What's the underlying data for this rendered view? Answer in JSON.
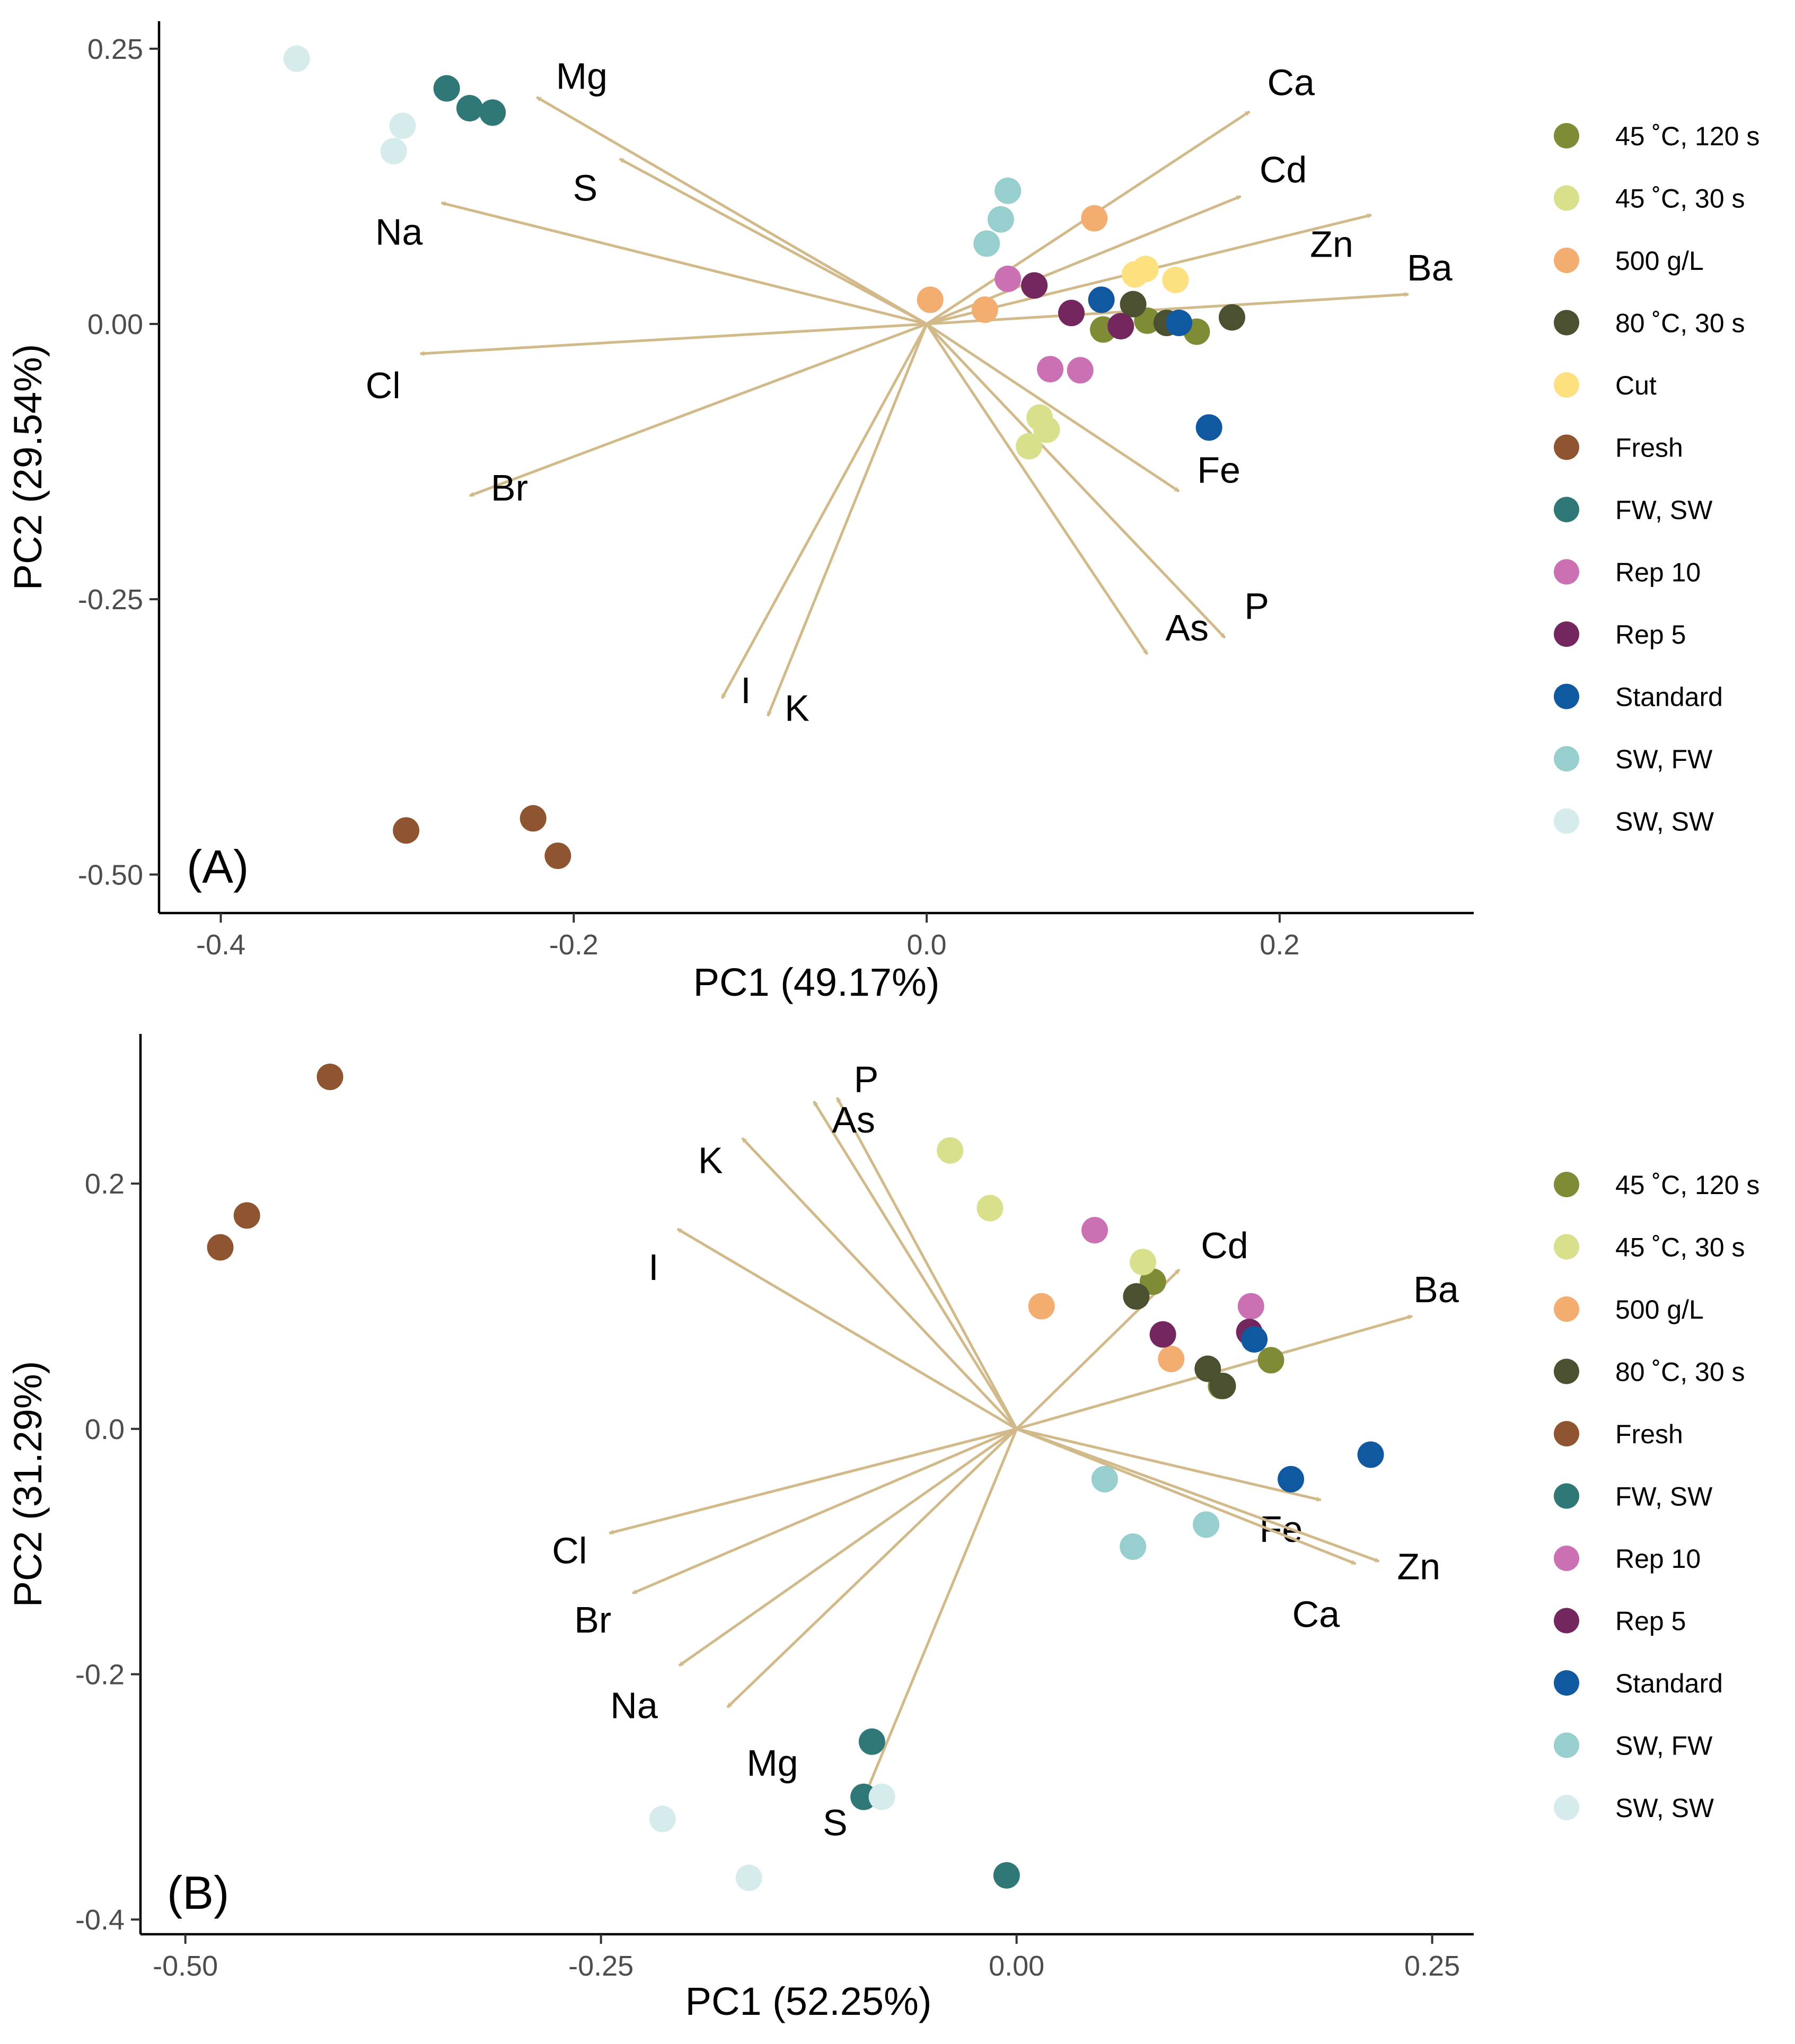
{
  "figure": "PCA biplots",
  "chart_data": [
    {
      "type": "scatter",
      "panel_label": "(A)",
      "xlabel": "PC1 (49.17%)",
      "ylabel": "PC2 (29.54%)",
      "xlim": [
        -0.435,
        0.31
      ],
      "ylim": [
        -0.535,
        0.275
      ],
      "xticks": [
        -0.4,
        -0.2,
        0.0,
        0.2
      ],
      "xtick_labels": [
        "-0.4",
        "-0.2",
        "0.0",
        "0.2"
      ],
      "yticks": [
        0.25,
        0.0,
        -0.25,
        -0.5
      ],
      "ytick_labels": [
        "0.25",
        "0.00",
        "-0.25",
        "-0.50"
      ],
      "legend_position": "right",
      "series": [
        {
          "name": "45 ˚C, 120 s",
          "color": "#7f8c35",
          "points": [
            [
              0.1,
              -0.005
            ],
            [
              0.125,
              0.003
            ],
            [
              0.153,
              -0.007
            ]
          ]
        },
        {
          "name": "45 ˚C, 30 s",
          "color": "#d8e08c",
          "points": [
            [
              0.064,
              -0.085
            ],
            [
              0.068,
              -0.096
            ],
            [
              0.058,
              -0.111
            ]
          ]
        },
        {
          "name": "500 g/L",
          "color": "#f4ad70",
          "points": [
            [
              0.095,
              0.096
            ],
            [
              0.002,
              0.022
            ],
            [
              0.033,
              0.013
            ]
          ]
        },
        {
          "name": "80 ˚C, 30 s",
          "color": "#4b5130",
          "points": [
            [
              0.117,
              0.018
            ],
            [
              0.136,
              0.001
            ],
            [
              0.173,
              0.006
            ]
          ]
        },
        {
          "name": "Cut",
          "color": "#fde07f",
          "points": [
            [
              0.118,
              0.045
            ],
            [
              0.124,
              0.05
            ],
            [
              0.141,
              0.04
            ]
          ]
        },
        {
          "name": "Fresh",
          "color": "#8f5430",
          "points": [
            [
              -0.295,
              -0.46
            ],
            [
              -0.223,
              -0.449
            ],
            [
              -0.209,
              -0.483
            ]
          ]
        },
        {
          "name": "FW, SW",
          "color": "#307777",
          "points": [
            [
              -0.272,
              0.214
            ],
            [
              -0.259,
              0.196
            ],
            [
              -0.246,
              0.192
            ]
          ]
        },
        {
          "name": "Rep 10",
          "color": "#cc70b4",
          "points": [
            [
              0.046,
              0.041
            ],
            [
              0.07,
              -0.041
            ],
            [
              0.087,
              -0.042
            ]
          ]
        },
        {
          "name": "Rep 5",
          "color": "#74275e",
          "points": [
            [
              0.061,
              0.035
            ],
            [
              0.082,
              0.01
            ],
            [
              0.11,
              -0.002
            ]
          ]
        },
        {
          "name": "Standard",
          "color": "#10589f",
          "points": [
            [
              0.099,
              0.022
            ],
            [
              0.143,
              0.001
            ],
            [
              0.16,
              -0.094
            ]
          ]
        },
        {
          "name": "SW, FW",
          "color": "#97cfcf",
          "points": [
            [
              0.046,
              0.121
            ],
            [
              0.042,
              0.095
            ],
            [
              0.034,
              0.073
            ]
          ]
        },
        {
          "name": "SW, SW",
          "color": "#d5ebec",
          "points": [
            [
              -0.357,
              0.241
            ],
            [
              -0.297,
              0.18
            ],
            [
              -0.302,
              0.157
            ]
          ]
        }
      ],
      "loadings": [
        {
          "name": "Mg",
          "x": -0.221,
          "y": 0.206
        },
        {
          "name": "S",
          "x": -0.174,
          "y": 0.15
        },
        {
          "name": "Na",
          "x": -0.275,
          "y": 0.11
        },
        {
          "name": "Cl",
          "x": -0.287,
          "y": -0.027
        },
        {
          "name": "Br",
          "x": -0.259,
          "y": -0.156
        },
        {
          "name": "I",
          "x": -0.116,
          "y": -0.34
        },
        {
          "name": "K",
          "x": -0.09,
          "y": -0.356
        },
        {
          "name": "Ca",
          "x": 0.183,
          "y": 0.193
        },
        {
          "name": "Cd",
          "x": 0.178,
          "y": 0.116
        },
        {
          "name": "Zn",
          "x": 0.252,
          "y": 0.099
        },
        {
          "name": "Ba",
          "x": 0.273,
          "y": 0.027
        },
        {
          "name": "Fe",
          "x": 0.143,
          "y": -0.152
        },
        {
          "name": "As",
          "x": 0.125,
          "y": -0.3
        },
        {
          "name": "P",
          "x": 0.169,
          "y": -0.285
        }
      ]
    },
    {
      "type": "scatter",
      "panel_label": "(B)",
      "xlabel": "PC1 (52.25%)",
      "ylabel": "PC2 (31.29%)",
      "xlim": [
        -0.527,
        0.275
      ],
      "ylim": [
        -0.412,
        0.322
      ],
      "xticks": [
        -0.5,
        -0.25,
        0.0,
        0.25
      ],
      "xtick_labels": [
        "-0.50",
        "-0.25",
        "0.00",
        "0.25"
      ],
      "yticks": [
        0.2,
        0.0,
        -0.2,
        -0.4
      ],
      "ytick_labels": [
        "0.2",
        "0.0",
        "-0.2",
        "-0.4"
      ],
      "legend_position": "right",
      "series": [
        {
          "name": "45 ˚C, 120 s",
          "color": "#7f8c35",
          "points": [
            [
              0.082,
              0.12
            ],
            [
              0.153,
              0.056
            ],
            [
              0.123,
              0.035
            ]
          ]
        },
        {
          "name": "45 ˚C, 30 s",
          "color": "#d8e08c",
          "points": [
            [
              -0.04,
              0.227
            ],
            [
              -0.016,
              0.18
            ],
            [
              0.076,
              0.136
            ]
          ]
        },
        {
          "name": "500 g/L",
          "color": "#f4ad70",
          "points": [
            [
              0.015,
              0.1
            ],
            [
              0.093,
              0.057
            ]
          ]
        },
        {
          "name": "80 ˚C, 30 s",
          "color": "#4b5130",
          "points": [
            [
              0.072,
              0.108
            ],
            [
              0.115,
              0.049
            ],
            [
              0.124,
              0.035
            ]
          ]
        },
        {
          "name": "Fresh",
          "color": "#8f5430",
          "points": [
            [
              -0.413,
              0.287
            ],
            [
              -0.463,
              0.174
            ],
            [
              -0.479,
              0.148
            ]
          ]
        },
        {
          "name": "FW, SW",
          "color": "#307777",
          "points": [
            [
              -0.087,
              -0.255
            ],
            [
              -0.092,
              -0.3
            ],
            [
              -0.006,
              -0.364
            ]
          ]
        },
        {
          "name": "Rep 10",
          "color": "#cc70b4",
          "points": [
            [
              0.047,
              0.162
            ],
            [
              0.141,
              0.1
            ]
          ]
        },
        {
          "name": "Rep 5",
          "color": "#74275e",
          "points": [
            [
              0.088,
              0.077
            ],
            [
              0.14,
              0.079
            ]
          ]
        },
        {
          "name": "Standard",
          "color": "#10589f",
          "points": [
            [
              0.143,
              0.073
            ],
            [
              0.165,
              -0.041
            ],
            [
              0.213,
              -0.021
            ]
          ]
        },
        {
          "name": "SW, FW",
          "color": "#97cfcf",
          "points": [
            [
              0.053,
              -0.041
            ],
            [
              0.07,
              -0.096
            ],
            [
              0.114,
              -0.078
            ]
          ]
        },
        {
          "name": "SW, SW",
          "color": "#d5ebec",
          "points": [
            [
              -0.081,
              -0.3
            ],
            [
              -0.213,
              -0.318
            ],
            [
              -0.161,
              -0.366
            ]
          ]
        }
      ],
      "loadings": [
        {
          "name": "P",
          "x": -0.108,
          "y": 0.27
        },
        {
          "name": "As",
          "x": -0.122,
          "y": 0.267
        },
        {
          "name": "K",
          "x": -0.165,
          "y": 0.237
        },
        {
          "name": "I",
          "x": -0.204,
          "y": 0.163
        },
        {
          "name": "Cl",
          "x": -0.245,
          "y": -0.085
        },
        {
          "name": "Br",
          "x": -0.231,
          "y": -0.134
        },
        {
          "name": "Na",
          "x": -0.203,
          "y": -0.193
        },
        {
          "name": "Mg",
          "x": -0.174,
          "y": -0.227
        },
        {
          "name": "S",
          "x": -0.09,
          "y": -0.295
        },
        {
          "name": "Cd",
          "x": 0.098,
          "y": 0.13
        },
        {
          "name": "Ba",
          "x": 0.238,
          "y": 0.092
        },
        {
          "name": "Fe",
          "x": 0.183,
          "y": -0.058
        },
        {
          "name": "Zn",
          "x": 0.218,
          "y": -0.108
        },
        {
          "name": "Ca",
          "x": 0.204,
          "y": -0.11
        }
      ]
    }
  ],
  "colors": {
    "arrow": "#d1b98a",
    "axis": "#000000",
    "tick_label": "#4d4d4d",
    "background": "#ffffff"
  }
}
